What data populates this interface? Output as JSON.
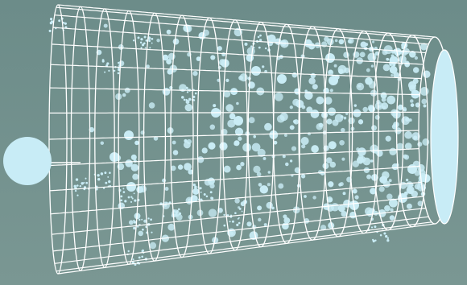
{
  "diagram": {
    "kind": "expanding-universe-funnel",
    "text_labels": [],
    "colors": {
      "background_top": "#6c8c89",
      "background_bottom": "#7a9793",
      "grid_lines": "#ffffff",
      "dots": "#c9ecf5",
      "origin_disk": "#c8ecf6",
      "far_end_disk": "#c8ecf6"
    },
    "components": [
      "origin-disk",
      "cone-wireframe-grid",
      "galaxy-dot-field",
      "far-end-ellipse"
    ]
  }
}
